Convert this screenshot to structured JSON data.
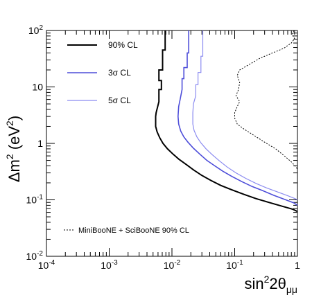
{
  "chart_data": {
    "type": "line",
    "title": "",
    "xlabel": "sin²2θμμ",
    "ylabel": "Δm² (eV²)",
    "xlabel_parts": {
      "base": "sin",
      "sup": "2",
      "mid": "2θ",
      "sub": "μμ"
    },
    "ylabel_parts": {
      "pre": "Δm",
      "sup1": "2",
      "mid": " (eV",
      "sup2": "2",
      "post": ")"
    },
    "xscale": "log",
    "yscale": "log",
    "xlim": [
      0.0001,
      1
    ],
    "ylim": [
      0.01,
      100
    ],
    "grid": false,
    "legend_position": "left",
    "x_ticks": [
      {
        "base": "10",
        "exp": "-4",
        "value": 0.0001
      },
      {
        "base": "10",
        "exp": "-3",
        "value": 0.001
      },
      {
        "base": "10",
        "exp": "-2",
        "value": 0.01
      },
      {
        "base": "10",
        "exp": "-1",
        "value": 0.1
      },
      {
        "base": "1",
        "exp": "",
        "value": 1
      }
    ],
    "y_ticks": [
      {
        "base": "10",
        "exp": "-2",
        "value": 0.01
      },
      {
        "base": "10",
        "exp": "-1",
        "value": 0.1
      },
      {
        "base": "1",
        "exp": "",
        "value": 1
      },
      {
        "base": "10",
        "exp": "",
        "value": 10
      },
      {
        "base": "10",
        "exp": "2",
        "value": 100
      }
    ],
    "series": [
      {
        "name": "90% CL",
        "color": "#000000",
        "dash": "solid",
        "width": 2,
        "x": [
          0.0078,
          0.0078,
          0.0071,
          0.0071,
          0.0062,
          0.0062,
          0.0068,
          0.0068,
          0.0062,
          0.0062,
          0.0056,
          0.0055,
          0.0055,
          0.0058,
          0.0064,
          0.0072,
          0.0085,
          0.0105,
          0.013,
          0.017,
          0.022,
          0.03,
          0.042,
          0.06,
          0.09,
          0.14,
          0.22,
          0.35,
          0.55,
          0.85,
          1.0
        ],
        "y": [
          100,
          45,
          45,
          20,
          20,
          13,
          13,
          9,
          9,
          5.5,
          3.5,
          3.0,
          2.0,
          1.6,
          1.25,
          1.0,
          0.8,
          0.64,
          0.52,
          0.42,
          0.34,
          0.27,
          0.22,
          0.18,
          0.15,
          0.125,
          0.105,
          0.09,
          0.078,
          0.068,
          0.062
        ]
      },
      {
        "name": "3σ CL",
        "color": "#4d4dd9",
        "dash": "solid",
        "width": 1.6,
        "x": [
          0.0185,
          0.0185,
          0.0175,
          0.0175,
          0.0155,
          0.0155,
          0.0145,
          0.0145,
          0.0135,
          0.0128,
          0.0125,
          0.0128,
          0.0138,
          0.0155,
          0.018,
          0.022,
          0.028,
          0.036,
          0.048,
          0.065,
          0.09,
          0.13,
          0.19,
          0.28,
          0.42,
          0.62,
          0.88,
          1.0
        ],
        "y": [
          100,
          40,
          40,
          22,
          22,
          14,
          14,
          9,
          6,
          4.5,
          3.0,
          2.2,
          1.65,
          1.3,
          1.05,
          0.82,
          0.64,
          0.5,
          0.4,
          0.32,
          0.26,
          0.21,
          0.172,
          0.145,
          0.12,
          0.102,
          0.088,
          0.08
        ]
      },
      {
        "name": "5σ CL",
        "color": "#8a8af0",
        "dash": "solid",
        "width": 1.2,
        "x": [
          0.031,
          0.031,
          0.029,
          0.029,
          0.026,
          0.026,
          0.024,
          0.024,
          0.022,
          0.0215,
          0.0215,
          0.0225,
          0.025,
          0.029,
          0.035,
          0.044,
          0.057,
          0.076,
          0.105,
          0.15,
          0.22,
          0.32,
          0.48,
          0.7,
          0.92,
          1.0
        ],
        "y": [
          100,
          35,
          35,
          18,
          18,
          11,
          11,
          7,
          5,
          3.5,
          2.2,
          1.7,
          1.3,
          1.02,
          0.8,
          0.63,
          0.49,
          0.38,
          0.3,
          0.24,
          0.195,
          0.163,
          0.138,
          0.118,
          0.105,
          0.1
        ]
      },
      {
        "name": "MiniBooNE + SciBooNE 90% CL",
        "color": "#000000",
        "dash": "dotted",
        "width": 1,
        "x": [
          0.88,
          0.82,
          0.9,
          0.8,
          0.6,
          0.4,
          0.25,
          0.17,
          0.12,
          0.11,
          0.12,
          0.115,
          0.105,
          0.12,
          0.11,
          0.1,
          0.1,
          0.11,
          0.14,
          0.2,
          0.3,
          0.45,
          0.62,
          0.8,
          0.95,
          1.0
        ],
        "y": [
          100,
          85,
          72,
          60,
          48,
          40,
          32,
          25,
          20,
          16,
          12,
          9,
          7,
          5.5,
          4.5,
          3.5,
          2.8,
          2.2,
          1.8,
          1.4,
          1.05,
          0.8,
          0.6,
          0.47,
          0.38,
          0.35
        ]
      }
    ]
  }
}
